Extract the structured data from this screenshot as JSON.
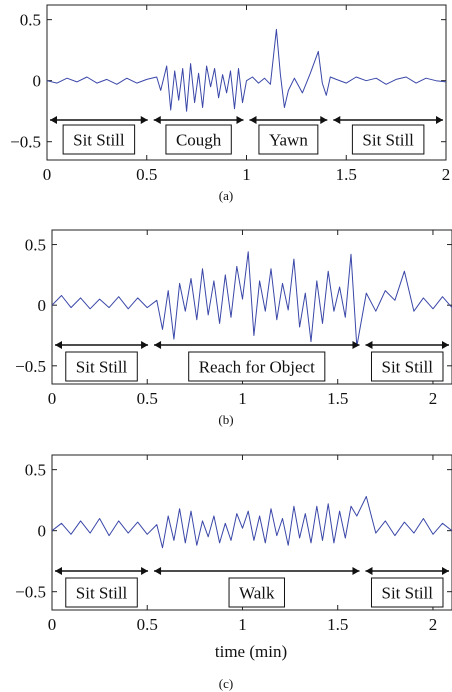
{
  "figure": {
    "xlabel": "time (min)"
  },
  "chart_data": [
    {
      "type": "line",
      "caption": "(a)",
      "xlim": [
        0,
        2
      ],
      "ylim": [
        -0.65,
        0.62
      ],
      "xticks": [
        0,
        0.5,
        1,
        1.5,
        2
      ],
      "xtick_labels": [
        "0",
        "0.5",
        "1",
        "1.5",
        "2"
      ],
      "yticks": [
        0.5,
        0,
        -0.5
      ],
      "ytick_labels": [
        "0.5",
        "0",
        "−0.5"
      ],
      "line_color": "#3a47a8",
      "series": [
        {
          "x": [
            0,
            0.05,
            0.1,
            0.15,
            0.2,
            0.25,
            0.3,
            0.35,
            0.4,
            0.45,
            0.5,
            0.55,
            0.57,
            0.6,
            0.62,
            0.64,
            0.66,
            0.68,
            0.7,
            0.72,
            0.74,
            0.76,
            0.78,
            0.8,
            0.82,
            0.84,
            0.86,
            0.88,
            0.9,
            0.92,
            0.94,
            0.96,
            0.98,
            1.0,
            1.03,
            1.06,
            1.09,
            1.12,
            1.15,
            1.17,
            1.19,
            1.21,
            1.24,
            1.28,
            1.32,
            1.36,
            1.38,
            1.4,
            1.42,
            1.45,
            1.5,
            1.55,
            1.6,
            1.65,
            1.7,
            1.75,
            1.8,
            1.85,
            1.9,
            1.95,
            2.0
          ],
          "y": [
            0.0,
            -0.02,
            0.02,
            -0.01,
            0.03,
            -0.02,
            0.01,
            -0.03,
            0.02,
            -0.02,
            0.01,
            0.03,
            -0.08,
            0.12,
            -0.24,
            0.08,
            -0.16,
            0.1,
            -0.25,
            0.14,
            -0.18,
            0.06,
            -0.22,
            0.12,
            -0.05,
            0.1,
            -0.14,
            0.05,
            -0.1,
            0.08,
            -0.23,
            0.1,
            -0.18,
            0.0,
            0.03,
            -0.02,
            0.02,
            -0.03,
            0.42,
            0.05,
            -0.22,
            -0.08,
            0.02,
            -0.1,
            0.06,
            0.24,
            -0.02,
            -0.12,
            0.03,
            0.01,
            -0.02,
            0.03,
            0.0,
            0.02,
            -0.03,
            0.01,
            0.03,
            -0.02,
            0.02,
            0.0,
            -0.01
          ]
        }
      ],
      "segments": [
        {
          "label": "Sit Still",
          "start": 0,
          "end": 0.52
        },
        {
          "label": "Cough",
          "start": 0.52,
          "end": 1.0
        },
        {
          "label": "Yawn",
          "start": 1.0,
          "end": 1.42
        },
        {
          "label": "Sit Still",
          "start": 1.42,
          "end": 2.0
        }
      ]
    },
    {
      "type": "line",
      "caption": "(b)",
      "xlim": [
        0,
        2.1
      ],
      "ylim": [
        -0.65,
        0.62
      ],
      "xticks": [
        0,
        0.5,
        1,
        1.5,
        2
      ],
      "xtick_labels": [
        "0",
        "0.5",
        "1",
        "1.5",
        "2"
      ],
      "yticks": [
        0.5,
        0,
        -0.5
      ],
      "ytick_labels": [
        "0.5",
        "0",
        "−0.5"
      ],
      "line_color": "#3a47a8",
      "series": [
        {
          "x": [
            0,
            0.05,
            0.1,
            0.15,
            0.2,
            0.25,
            0.3,
            0.35,
            0.4,
            0.45,
            0.5,
            0.55,
            0.58,
            0.61,
            0.64,
            0.67,
            0.7,
            0.73,
            0.76,
            0.79,
            0.82,
            0.85,
            0.88,
            0.91,
            0.94,
            0.97,
            1.0,
            1.03,
            1.06,
            1.09,
            1.12,
            1.15,
            1.18,
            1.21,
            1.24,
            1.27,
            1.3,
            1.33,
            1.36,
            1.39,
            1.42,
            1.45,
            1.48,
            1.51,
            1.54,
            1.57,
            1.6,
            1.65,
            1.7,
            1.75,
            1.8,
            1.85,
            1.9,
            1.95,
            2.0,
            2.05,
            2.1
          ],
          "y": [
            0.0,
            0.08,
            -0.02,
            0.06,
            -0.03,
            0.05,
            -0.02,
            0.07,
            -0.03,
            0.06,
            -0.02,
            0.04,
            -0.2,
            0.12,
            -0.28,
            0.18,
            -0.05,
            0.22,
            -0.12,
            0.3,
            -0.08,
            0.2,
            -0.15,
            0.25,
            -0.1,
            0.32,
            0.05,
            0.44,
            -0.25,
            0.2,
            -0.05,
            0.3,
            -0.12,
            0.18,
            -0.04,
            0.38,
            -0.18,
            0.1,
            -0.3,
            0.2,
            -0.15,
            0.28,
            -0.05,
            0.15,
            -0.1,
            0.42,
            -0.34,
            0.1,
            -0.05,
            0.12,
            0.04,
            0.28,
            -0.05,
            0.06,
            -0.03,
            0.07,
            -0.02
          ]
        }
      ],
      "segments": [
        {
          "label": "Sit Still",
          "start": 0,
          "end": 0.52
        },
        {
          "label": "Reach for Object",
          "start": 0.52,
          "end": 1.63
        },
        {
          "label": "Sit Still",
          "start": 1.63,
          "end": 2.1
        }
      ]
    },
    {
      "type": "line",
      "caption": "(c)",
      "xlim": [
        0,
        2.1
      ],
      "ylim": [
        -0.65,
        0.62
      ],
      "xticks": [
        0,
        0.5,
        1,
        1.5,
        2
      ],
      "xtick_labels": [
        "0",
        "0.5",
        "1",
        "1.5",
        "2"
      ],
      "yticks": [
        0.5,
        0,
        -0.5
      ],
      "ytick_labels": [
        "0.5",
        "0",
        "−0.5"
      ],
      "line_color": "#3a47a8",
      "series": [
        {
          "x": [
            0,
            0.05,
            0.1,
            0.15,
            0.2,
            0.25,
            0.3,
            0.35,
            0.4,
            0.45,
            0.5,
            0.55,
            0.58,
            0.61,
            0.64,
            0.67,
            0.7,
            0.73,
            0.76,
            0.79,
            0.82,
            0.85,
            0.88,
            0.91,
            0.94,
            0.97,
            1.0,
            1.03,
            1.06,
            1.09,
            1.12,
            1.15,
            1.18,
            1.21,
            1.24,
            1.27,
            1.3,
            1.33,
            1.36,
            1.39,
            1.42,
            1.45,
            1.48,
            1.51,
            1.54,
            1.57,
            1.6,
            1.65,
            1.7,
            1.75,
            1.8,
            1.85,
            1.9,
            1.95,
            2.0,
            2.05,
            2.1
          ],
          "y": [
            0.0,
            0.06,
            -0.03,
            0.08,
            -0.02,
            0.1,
            -0.04,
            0.08,
            -0.02,
            0.07,
            -0.03,
            0.05,
            -0.14,
            0.12,
            -0.08,
            0.18,
            -0.1,
            0.16,
            -0.12,
            0.08,
            -0.05,
            0.12,
            -0.1,
            0.06,
            -0.08,
            0.14,
            0.02,
            0.16,
            -0.08,
            0.12,
            -0.1,
            0.18,
            -0.04,
            0.1,
            -0.12,
            0.2,
            -0.06,
            0.14,
            -0.1,
            0.2,
            -0.08,
            0.22,
            -0.1,
            0.16,
            -0.06,
            0.2,
            0.12,
            0.28,
            -0.02,
            0.08,
            -0.04,
            0.07,
            -0.02,
            0.1,
            -0.03,
            0.06,
            0.0
          ]
        }
      ],
      "segments": [
        {
          "label": "Sit Still",
          "start": 0,
          "end": 0.52
        },
        {
          "label": "Walk",
          "start": 0.52,
          "end": 1.63
        },
        {
          "label": "Sit Still",
          "start": 1.63,
          "end": 2.1
        }
      ]
    }
  ]
}
